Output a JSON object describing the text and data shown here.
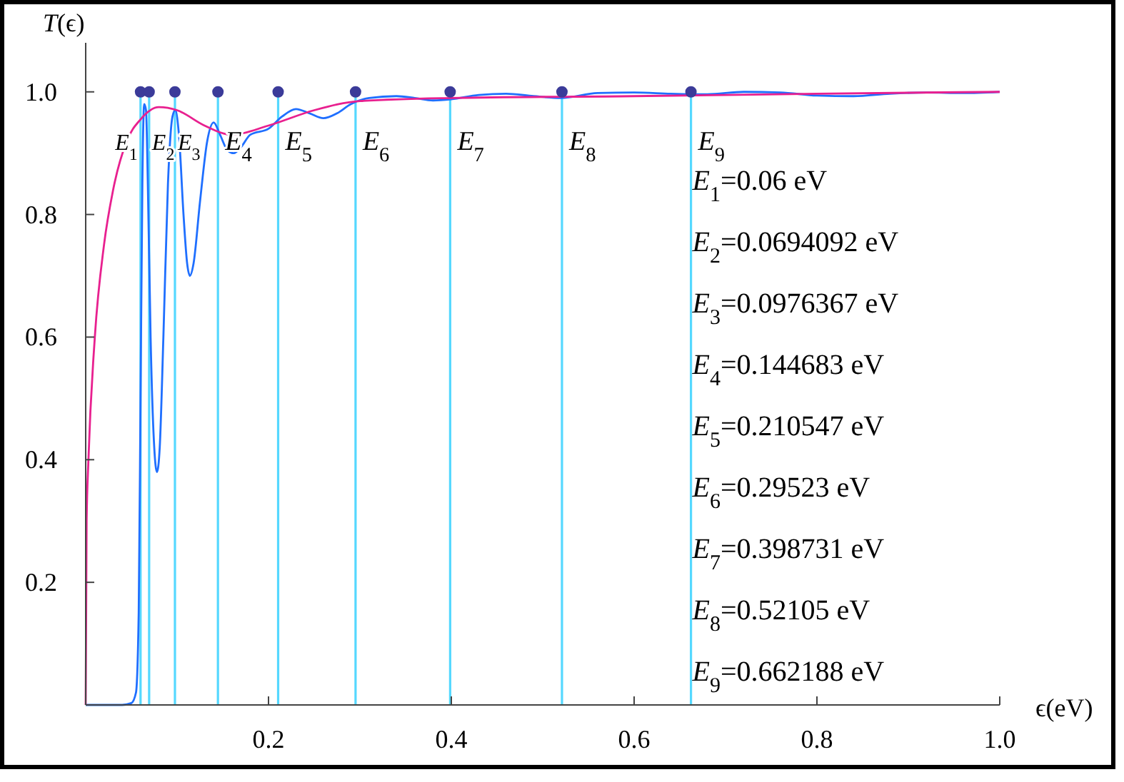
{
  "chart_data": {
    "type": "line",
    "ylabel": "T(ϵ)",
    "xlabel": "ϵ(eV)",
    "xlim": [
      0,
      1.0
    ],
    "ylim": [
      0,
      1.08
    ],
    "xticks": [
      0.2,
      0.4,
      0.6,
      0.8,
      {
        "value": 1,
        "label": "1.0"
      }
    ],
    "yticks": [
      0.2,
      0.4,
      0.6,
      0.8,
      {
        "value": 1,
        "label": "1.0"
      }
    ],
    "grid": false,
    "line_style": "solid",
    "series": [
      {
        "type": "line",
        "color": "#1f6fff",
        "x": [
          0,
          0.04,
          0.05,
          0.055,
          0.058,
          0.06,
          0.062,
          0.064,
          0.066,
          0.068,
          0.071,
          0.075,
          0.078,
          0.081,
          0.085,
          0.09,
          0.095,
          0.098,
          0.102,
          0.107,
          0.111,
          0.114,
          0.118,
          0.125,
          0.133,
          0.14,
          0.147,
          0.155,
          0.162,
          0.17,
          0.18,
          0.2,
          0.215,
          0.23,
          0.245,
          0.26,
          0.275,
          0.29,
          0.31,
          0.34,
          0.36,
          0.38,
          0.4,
          0.43,
          0.46,
          0.49,
          0.52,
          0.56,
          0.6,
          0.64,
          0.68,
          0.72,
          0.76,
          0.8,
          0.84,
          0.88,
          0.92,
          0.96,
          1.0
        ],
        "values": [
          0,
          0,
          0.003,
          0.02,
          0.15,
          0.5,
          0.85,
          0.98,
          0.97,
          0.85,
          0.6,
          0.42,
          0.38,
          0.42,
          0.6,
          0.85,
          0.96,
          0.97,
          0.93,
          0.8,
          0.72,
          0.7,
          0.72,
          0.82,
          0.92,
          0.95,
          0.93,
          0.905,
          0.9,
          0.91,
          0.93,
          0.94,
          0.96,
          0.972,
          0.965,
          0.957,
          0.965,
          0.98,
          0.99,
          0.993,
          0.99,
          0.986,
          0.988,
          0.995,
          0.997,
          0.993,
          0.99,
          0.998,
          0.999,
          0.997,
          0.996,
          1.0,
          0.999,
          0.994,
          0.993,
          0.997,
          0.999,
          0.998,
          1.0
        ]
      },
      {
        "type": "line",
        "color": "#e8208f",
        "x": [
          0,
          0.001,
          0.003,
          0.01,
          0.02,
          0.03,
          0.045,
          0.06,
          0.08,
          0.1,
          0.13,
          0.16,
          0.2,
          0.25,
          0.3,
          0.4,
          0.6,
          0.8,
          1.0
        ],
        "values": [
          0,
          0.3,
          0.4,
          0.6,
          0.75,
          0.84,
          0.92,
          0.955,
          0.975,
          0.97,
          0.945,
          0.93,
          0.945,
          0.97,
          0.985,
          0.99,
          0.993,
          0.997,
          1.0
        ]
      },
      {
        "type": "scatter",
        "color": "#3b3b99",
        "marker": "circle",
        "x": [
          0.06,
          0.0694092,
          0.0976367,
          0.144683,
          0.210547,
          0.29523,
          0.398731,
          0.52105,
          0.662188
        ],
        "values": [
          1,
          1,
          1,
          1,
          1,
          1,
          1,
          1,
          1
        ]
      }
    ],
    "ref_lines": [
      {
        "axis": "x",
        "value": 0.06,
        "label": "E$_{1}$",
        "color": "#55d8ff"
      },
      {
        "axis": "x",
        "value": 0.0694092,
        "label": "E$_{2}$",
        "color": "#55d8ff"
      },
      {
        "axis": "x",
        "value": 0.0976367,
        "label": "E$_{3}$",
        "color": "#55d8ff"
      },
      {
        "axis": "x",
        "value": 0.144683,
        "label": "E$_{4}$",
        "color": "#55d8ff"
      },
      {
        "axis": "x",
        "value": 0.210547,
        "label": "E$_{5}$",
        "color": "#55d8ff"
      },
      {
        "axis": "x",
        "value": 0.29523,
        "label": "E$_{6}$",
        "color": "#55d8ff"
      },
      {
        "axis": "x",
        "value": 0.398731,
        "label": "E$_{7}$",
        "color": "#55d8ff"
      },
      {
        "axis": "x",
        "value": 0.52105,
        "label": "E$_{8}$",
        "color": "#55d8ff"
      },
      {
        "axis": "x",
        "value": 0.662188,
        "label": "E$_{9}$",
        "color": "#55d8ff"
      }
    ],
    "annotations": [
      "E$_{1}$=0.06 eV",
      "E$_{2}$=0.0694092 eV",
      "E$_{3}$=0.0976367 eV",
      "E$_{4}$=0.144683 eV",
      "E$_{5}$=0.210547 eV",
      "E$_{6}$=0.29523 eV",
      "E$_{7}$=0.398731 eV",
      "E$_{8}$=0.52105 eV",
      "E$_{9}$=0.662188 eV"
    ]
  }
}
